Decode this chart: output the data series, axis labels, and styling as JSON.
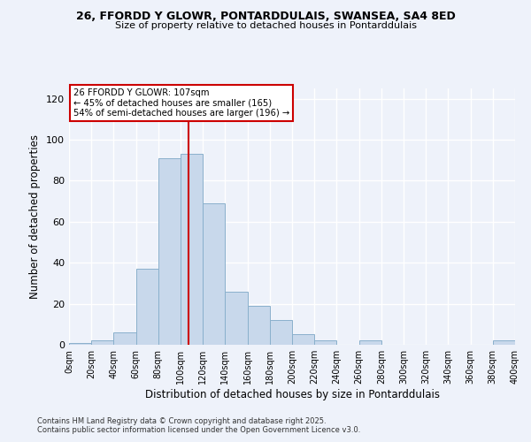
{
  "title1": "26, FFORDD Y GLOWR, PONTARDDULAIS, SWANSEA, SA4 8ED",
  "title2": "Size of property relative to detached houses in Pontarddulais",
  "xlabel": "Distribution of detached houses by size in Pontarddulais",
  "ylabel": "Number of detached properties",
  "bar_edges": [
    0,
    20,
    40,
    60,
    80,
    100,
    120,
    140,
    160,
    180,
    200,
    220,
    240,
    260,
    280,
    300,
    320,
    340,
    360,
    380,
    400
  ],
  "bar_heights": [
    1,
    2,
    6,
    37,
    91,
    93,
    69,
    26,
    19,
    12,
    5,
    2,
    0,
    2,
    0,
    0,
    0,
    0,
    0,
    2
  ],
  "bar_color": "#c8d8eb",
  "bar_edge_color": "#8ab0cc",
  "bg_color": "#eef2fa",
  "grid_color": "#ffffff",
  "vline_x": 107,
  "vline_color": "#cc0000",
  "annotation_title": "26 FFORDD Y GLOWR: 107sqm",
  "annotation_line1": "← 45% of detached houses are smaller (165)",
  "annotation_line2": "54% of semi-detached houses are larger (196) →",
  "annotation_box_color": "#ffffff",
  "annotation_box_edge": "#cc0000",
  "tick_labels": [
    "0sqm",
    "20sqm",
    "40sqm",
    "60sqm",
    "80sqm",
    "100sqm",
    "120sqm",
    "140sqm",
    "160sqm",
    "180sqm",
    "200sqm",
    "220sqm",
    "240sqm",
    "260sqm",
    "280sqm",
    "300sqm",
    "320sqm",
    "340sqm",
    "360sqm",
    "380sqm",
    "400sqm"
  ],
  "ylim": [
    0,
    125
  ],
  "yticks": [
    0,
    20,
    40,
    60,
    80,
    100,
    120
  ],
  "footer1": "Contains HM Land Registry data © Crown copyright and database right 2025.",
  "footer2": "Contains public sector information licensed under the Open Government Licence v3.0."
}
